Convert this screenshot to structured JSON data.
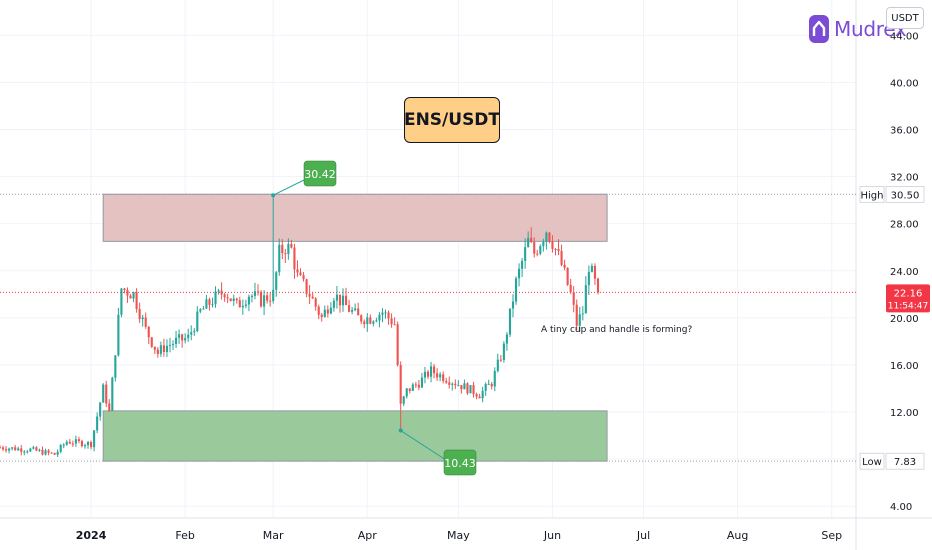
{
  "currency": "USDT",
  "logo": {
    "name": "Mudrex",
    "icon": "mudrex-logo-icon",
    "color": "#7b4bd6"
  },
  "chart_data": {
    "type": "candlestick",
    "title": "ENS/USDT",
    "ylim": [
      3,
      47
    ],
    "y_ticks": [
      4,
      8,
      12,
      16,
      20,
      24,
      28,
      32,
      36,
      40,
      44
    ],
    "y_tick_labels": [
      "4.00",
      "",
      "12.00",
      "16.00",
      "20.00",
      "24.00",
      "28.00",
      "32.00",
      "36.00",
      "40.00",
      "44.00"
    ],
    "x_tick_labels": [
      "2024",
      "Feb",
      "Mar",
      "Apr",
      "May",
      "Jun",
      "Jul",
      "Aug",
      "Sep"
    ],
    "x_range_days": [
      -30,
      252
    ],
    "x_tick_days": [
      0,
      31,
      60,
      91,
      121,
      152,
      182,
      213,
      244
    ],
    "grid": true,
    "colors": {
      "up": "#26a69a",
      "down": "#ef5350"
    },
    "price_path_days": [
      -30,
      -20,
      -12,
      -8,
      0,
      4,
      6,
      10,
      14,
      18,
      22,
      24,
      28,
      32,
      36,
      40,
      44,
      48,
      52,
      56,
      60,
      62,
      64,
      66,
      68,
      72,
      76,
      80,
      84,
      88,
      92,
      96,
      100,
      102,
      104,
      108,
      112,
      116,
      120,
      124,
      128,
      132,
      136,
      140,
      144,
      146,
      150,
      152,
      155,
      158,
      160,
      162,
      164,
      167
    ],
    "price_path_values": [
      9.0,
      8.8,
      8.4,
      9.5,
      9.3,
      14.0,
      12.0,
      22.5,
      22.0,
      19.0,
      17.0,
      17.5,
      18.0,
      18.3,
      20.5,
      21.5,
      22.3,
      21.0,
      22.0,
      21.5,
      22.0,
      25.5,
      26.0,
      25.8,
      23.5,
      22.0,
      20.0,
      22.0,
      21.0,
      20.0,
      20.0,
      20.5,
      19.5,
      12.5,
      13.8,
      14.5,
      15.5,
      15.0,
      14.5,
      14.0,
      13.5,
      14.5,
      17.5,
      23.0,
      26.5,
      25.5,
      27.5,
      26.5,
      24.5,
      22.0,
      19.5,
      20.5,
      24.5,
      22.16
    ],
    "resistance_zone": {
      "y_range": [
        26.5,
        30.5
      ],
      "x_range_days": [
        4,
        170
      ],
      "color": "#e5c2c2"
    },
    "support_zone": {
      "y_range": [
        7.83,
        12.1
      ],
      "x_range_days": [
        4,
        170
      ],
      "color": "#9ac99c"
    },
    "high_marker": {
      "value": 30.42,
      "label": "30.42",
      "day": 60
    },
    "low_marker": {
      "value": 10.43,
      "label": "10.43",
      "day": 102
    },
    "high_line": {
      "label": "High",
      "value_label": "30.50",
      "value": 30.5
    },
    "low_line": {
      "label": "Low",
      "value_label": "7.83",
      "value": 7.83
    },
    "last_price": {
      "value": 22.16,
      "label": "22.16",
      "countdown": "11:54:47",
      "color": "#f23645"
    },
    "annotation": "A tiny cup and handle is forming?"
  }
}
